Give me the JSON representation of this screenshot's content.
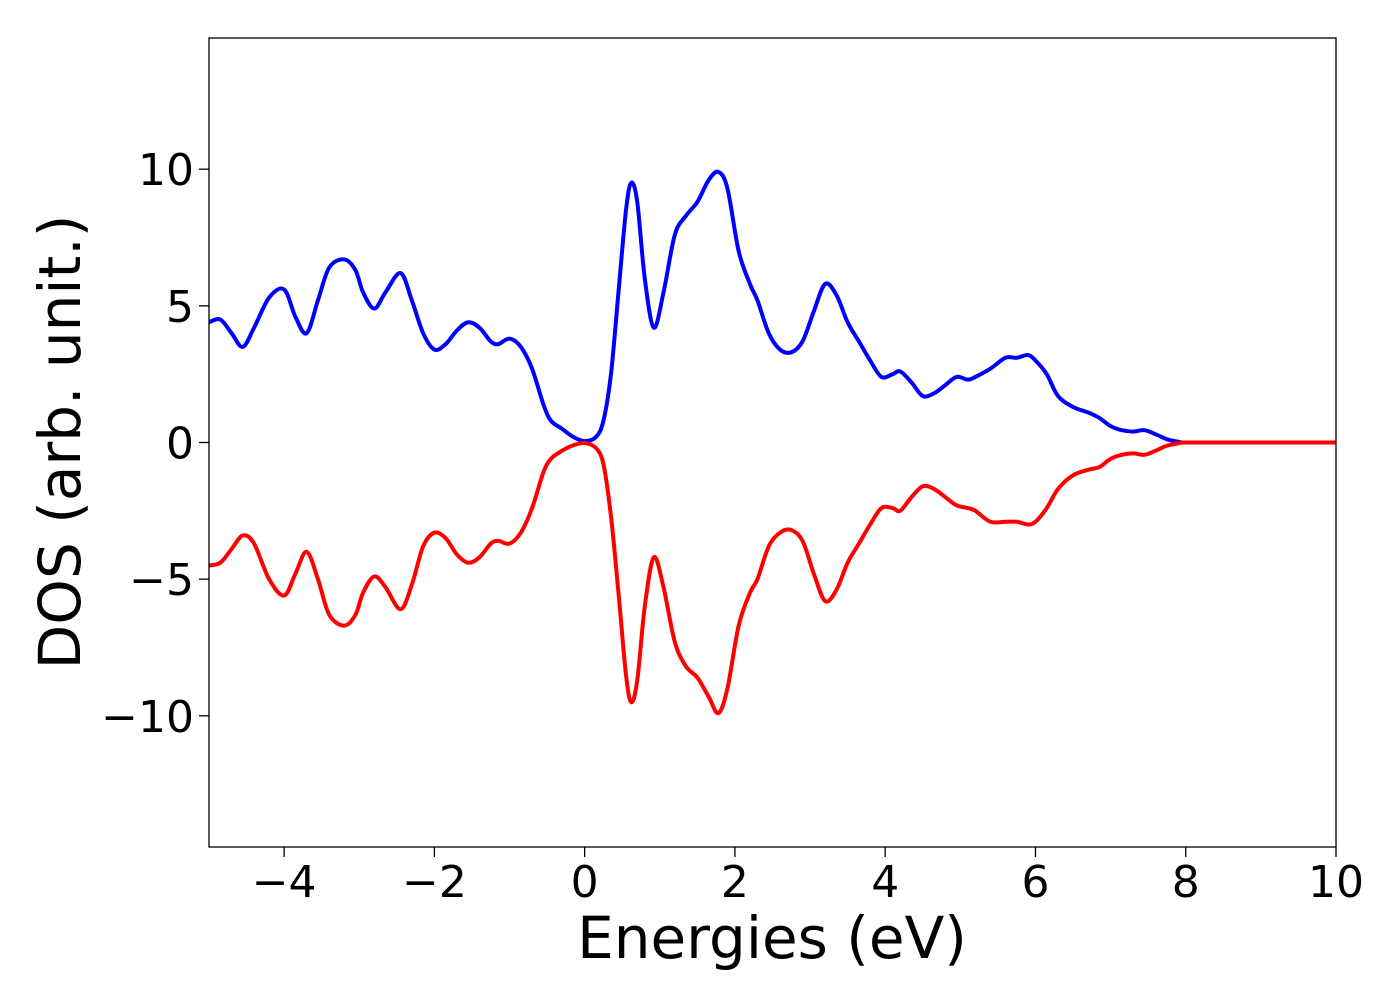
{
  "chart_data": {
    "type": "line",
    "title": "",
    "xlabel": "Energies (eV)",
    "ylabel": "DOS (arb. unit.)",
    "xlim": [
      -5,
      10
    ],
    "ylim": [
      -14.8,
      14.8
    ],
    "xticks": [
      -4,
      -2,
      0,
      2,
      4,
      6,
      8,
      10
    ],
    "xtick_labels": [
      "−4",
      "−2",
      "0",
      "2",
      "4",
      "6",
      "8",
      "10"
    ],
    "yticks": [
      -10,
      -5,
      0,
      5,
      10
    ],
    "ytick_labels": [
      "−10",
      "−5",
      "0",
      "5",
      "10"
    ],
    "grid": false,
    "legend": "none",
    "series": [
      {
        "color": "#0000ff",
        "x": [
          -5.0,
          -4.85,
          -4.7,
          -4.55,
          -4.4,
          -4.2,
          -4.0,
          -3.85,
          -3.7,
          -3.55,
          -3.4,
          -3.2,
          -3.05,
          -2.95,
          -2.8,
          -2.65,
          -2.45,
          -2.3,
          -2.15,
          -2.0,
          -1.85,
          -1.7,
          -1.55,
          -1.4,
          -1.25,
          -1.15,
          -1.0,
          -0.85,
          -0.7,
          -0.55,
          -0.45,
          -0.3,
          -0.15,
          0.0,
          0.15,
          0.25,
          0.35,
          0.45,
          0.55,
          0.62,
          0.7,
          0.8,
          0.92,
          1.05,
          1.2,
          1.35,
          1.5,
          1.65,
          1.78,
          1.9,
          2.05,
          2.2,
          2.3,
          2.45,
          2.6,
          2.75,
          2.9,
          3.05,
          3.2,
          3.35,
          3.5,
          3.65,
          3.8,
          3.95,
          4.1,
          4.2,
          4.35,
          4.5,
          4.65,
          4.8,
          4.95,
          5.1,
          5.2,
          5.4,
          5.6,
          5.75,
          5.9,
          6.0,
          6.15,
          6.3,
          6.5,
          6.7,
          6.85,
          7.0,
          7.15,
          7.3,
          7.45,
          7.6,
          7.75,
          7.9,
          8.0,
          8.5,
          9.0,
          9.5,
          10.0
        ],
        "y": [
          4.4,
          4.5,
          4.0,
          3.5,
          4.2,
          5.3,
          5.6,
          4.6,
          4.0,
          5.2,
          6.4,
          6.7,
          6.3,
          5.5,
          4.9,
          5.5,
          6.2,
          5.2,
          4.0,
          3.4,
          3.6,
          4.1,
          4.4,
          4.2,
          3.7,
          3.6,
          3.8,
          3.5,
          2.7,
          1.4,
          0.8,
          0.5,
          0.2,
          0.05,
          0.2,
          0.8,
          2.5,
          5.5,
          8.5,
          9.5,
          8.8,
          6.0,
          4.2,
          5.5,
          7.6,
          8.3,
          8.8,
          9.6,
          9.9,
          9.3,
          7.0,
          5.8,
          5.2,
          4.0,
          3.4,
          3.3,
          3.7,
          4.8,
          5.8,
          5.4,
          4.4,
          3.7,
          3.0,
          2.4,
          2.5,
          2.6,
          2.2,
          1.7,
          1.8,
          2.1,
          2.4,
          2.3,
          2.4,
          2.7,
          3.1,
          3.1,
          3.2,
          3.0,
          2.5,
          1.7,
          1.3,
          1.1,
          0.9,
          0.6,
          0.45,
          0.4,
          0.45,
          0.3,
          0.12,
          0.03,
          0.0,
          0.0,
          0.0,
          0.0,
          0.0
        ]
      },
      {
        "color": "#ff0000",
        "x": [
          -5.0,
          -4.85,
          -4.7,
          -4.55,
          -4.4,
          -4.2,
          -4.0,
          -3.85,
          -3.7,
          -3.55,
          -3.4,
          -3.2,
          -3.05,
          -2.95,
          -2.8,
          -2.65,
          -2.45,
          -2.3,
          -2.15,
          -2.0,
          -1.85,
          -1.7,
          -1.55,
          -1.4,
          -1.25,
          -1.15,
          -1.0,
          -0.85,
          -0.7,
          -0.55,
          -0.45,
          -0.3,
          -0.15,
          0.0,
          0.15,
          0.25,
          0.35,
          0.45,
          0.55,
          0.62,
          0.7,
          0.8,
          0.92,
          1.05,
          1.2,
          1.35,
          1.5,
          1.65,
          1.78,
          1.9,
          2.05,
          2.2,
          2.3,
          2.45,
          2.6,
          2.75,
          2.9,
          3.05,
          3.2,
          3.35,
          3.5,
          3.65,
          3.8,
          3.95,
          4.1,
          4.2,
          4.35,
          4.5,
          4.65,
          4.8,
          4.95,
          5.1,
          5.2,
          5.4,
          5.6,
          5.75,
          5.9,
          6.0,
          6.15,
          6.3,
          6.5,
          6.7,
          6.85,
          7.0,
          7.15,
          7.3,
          7.45,
          7.6,
          7.75,
          7.9,
          8.0,
          8.5,
          9.0,
          9.5,
          10.0
        ],
        "y": [
          -4.5,
          -4.4,
          -3.9,
          -3.4,
          -3.7,
          -5.0,
          -5.6,
          -4.8,
          -4.0,
          -5.0,
          -6.3,
          -6.7,
          -6.3,
          -5.5,
          -4.9,
          -5.3,
          -6.1,
          -5.2,
          -3.8,
          -3.3,
          -3.5,
          -4.1,
          -4.4,
          -4.2,
          -3.7,
          -3.6,
          -3.7,
          -3.3,
          -2.4,
          -1.1,
          -0.6,
          -0.3,
          -0.1,
          -0.02,
          -0.2,
          -0.8,
          -2.7,
          -5.5,
          -8.5,
          -9.5,
          -8.7,
          -6.0,
          -4.2,
          -5.3,
          -7.3,
          -8.2,
          -8.6,
          -9.3,
          -9.9,
          -9.0,
          -6.7,
          -5.5,
          -5.0,
          -3.8,
          -3.3,
          -3.2,
          -3.6,
          -4.8,
          -5.8,
          -5.4,
          -4.4,
          -3.7,
          -3.0,
          -2.4,
          -2.4,
          -2.5,
          -2.0,
          -1.6,
          -1.7,
          -2.0,
          -2.3,
          -2.4,
          -2.5,
          -2.9,
          -2.9,
          -2.9,
          -3.0,
          -2.9,
          -2.4,
          -1.7,
          -1.2,
          -1.0,
          -0.9,
          -0.6,
          -0.45,
          -0.4,
          -0.45,
          -0.3,
          -0.12,
          -0.03,
          0.0,
          0.0,
          0.0,
          0.0,
          0.0
        ]
      }
    ]
  }
}
